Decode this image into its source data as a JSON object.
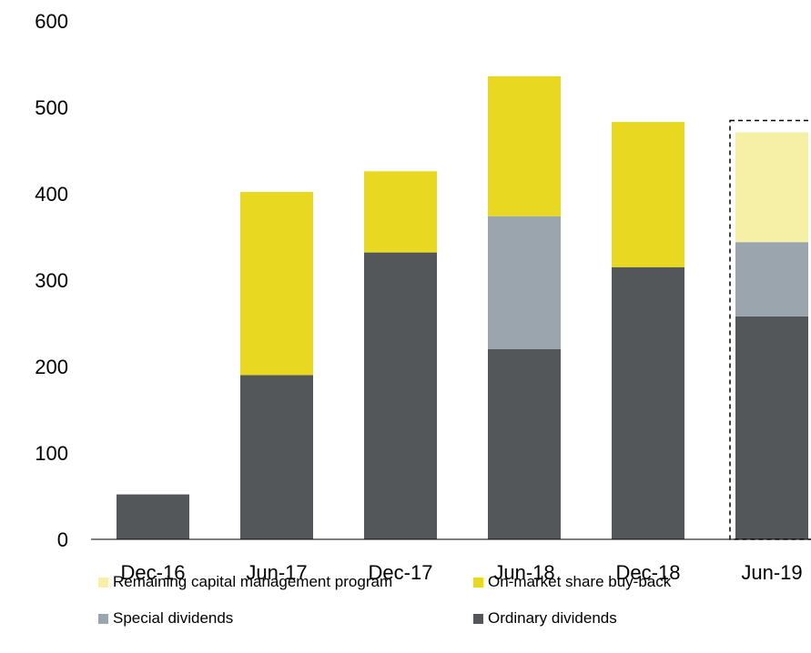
{
  "chart_data": {
    "type": "bar",
    "stacked": true,
    "categories": [
      "Dec-16",
      "Jun-17",
      "Dec-17",
      "Jun-18",
      "Dec-18",
      "Jun-19"
    ],
    "ylim": [
      0,
      600
    ],
    "yticks": [
      0,
      100,
      200,
      300,
      400,
      500,
      600
    ],
    "grid": false,
    "legend_position": "bottom",
    "highlight": {
      "category": "Jun-19",
      "style": "dashed-box"
    },
    "series": [
      {
        "name": "Ordinary dividends",
        "color": "#54575a",
        "values": [
          52,
          190,
          332,
          220,
          315,
          258
        ]
      },
      {
        "name": "Special dividends",
        "color": "#9aa5ae",
        "values": [
          0,
          0,
          0,
          154,
          0,
          86
        ]
      },
      {
        "name": "On-market share buy-back",
        "color": "#e8d822",
        "values": [
          0,
          212,
          94,
          162,
          168,
          0
        ]
      },
      {
        "name": "Remaining capital management program",
        "color": "#f6efa6",
        "values": [
          0,
          0,
          0,
          0,
          0,
          127
        ]
      }
    ],
    "legend": [
      {
        "label": "Remaining capital management program",
        "color": "#f6efa6"
      },
      {
        "label": "On-market share buy-back",
        "color": "#e8d822"
      },
      {
        "label": "Special dividends",
        "color": "#9aa5ae"
      },
      {
        "label": "Ordinary dividends",
        "color": "#54575a"
      }
    ]
  }
}
